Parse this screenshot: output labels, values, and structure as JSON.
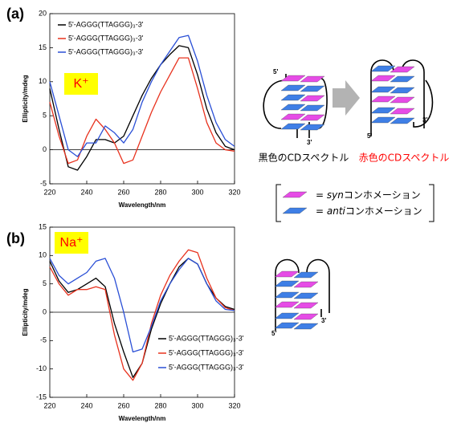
{
  "panel_labels": [
    "(a)",
    "(b)"
  ],
  "chart_data": [
    {
      "type": "line",
      "annotation": "K⁺",
      "x_label": "Wavelength/nm",
      "y_label": "Ellipticity/mdeg",
      "x": [
        220,
        225,
        230,
        235,
        240,
        245,
        250,
        255,
        260,
        265,
        270,
        275,
        280,
        285,
        290,
        295,
        300,
        305,
        310,
        315,
        320
      ],
      "xlim": [
        220,
        320
      ],
      "xticks": [
        220,
        240,
        260,
        280,
        300,
        320
      ],
      "ylim": [
        -5,
        20
      ],
      "yticks": [
        -5,
        0,
        5,
        10,
        15,
        20
      ],
      "zero_line": true,
      "legend": "upper left",
      "series": [
        {
          "name": "5'-AGGG(TTAGGG)₃-3'",
          "color": "#000000",
          "values": [
            9,
            3,
            -2.5,
            -3,
            -1,
            1.5,
            1.5,
            1,
            2,
            5,
            8,
            10.5,
            12.5,
            14,
            15.3,
            15,
            11,
            6,
            2.5,
            0.5,
            0
          ]
        },
        {
          "name": "5'-AGGG(TTAGGG)₃-3'",
          "color": "#e8321e",
          "values": [
            7,
            2,
            -2,
            -1.5,
            2,
            4.5,
            3,
            1,
            -2,
            -1.5,
            2,
            5.5,
            8.5,
            11,
            13.5,
            13.5,
            9,
            4,
            1,
            0,
            -0.2
          ]
        },
        {
          "name": "5'-AGGG(TTAGGG)₃-3'",
          "color": "#2a4fd6",
          "values": [
            10,
            5,
            0,
            -1,
            1,
            1,
            3.5,
            2.5,
            1,
            3,
            7,
            10,
            12.5,
            14.5,
            16.5,
            16.8,
            13,
            8,
            4,
            1.5,
            0.5
          ]
        }
      ]
    },
    {
      "type": "line",
      "annotation": "Na⁺",
      "x_label": "Wavelength/nm",
      "y_label": "Ellipticity/mdeg",
      "x": [
        220,
        225,
        230,
        235,
        240,
        245,
        250,
        255,
        260,
        265,
        270,
        275,
        280,
        285,
        290,
        295,
        300,
        305,
        310,
        315,
        320
      ],
      "xlim": [
        220,
        320
      ],
      "xticks": [
        220,
        240,
        260,
        280,
        300,
        320
      ],
      "ylim": [
        -15,
        15
      ],
      "yticks": [
        -15,
        -10,
        -5,
        0,
        5,
        10,
        15
      ],
      "zero_line": true,
      "legend": "lower right",
      "series": [
        {
          "name": "5'-AGGG(TTAGGG)₃-3'",
          "color": "#000000",
          "values": [
            9,
            5.5,
            3.5,
            4,
            5,
            6,
            4.5,
            -2,
            -7,
            -11.5,
            -9,
            -3,
            1.5,
            5,
            8,
            9.5,
            8.5,
            5,
            2.5,
            1,
            0.5
          ]
        },
        {
          "name": "5'-AGGG(TTAGGG)₃-3'",
          "color": "#e8321e",
          "values": [
            8,
            5,
            3,
            4,
            4,
            4.5,
            4,
            -4,
            -10,
            -12,
            -9,
            -2,
            3,
            6.5,
            9,
            11,
            10.5,
            6,
            2.5,
            0.8,
            0.3
          ]
        },
        {
          "name": "5'-AGGG(TTAGGG)₃-3'",
          "color": "#2a4fd6",
          "values": [
            9.5,
            6.5,
            5,
            6,
            7,
            9,
            9.5,
            6,
            0,
            -7,
            -6.5,
            -2.5,
            2,
            5,
            7.5,
            9.5,
            8.5,
            5,
            2,
            0.5,
            0.3
          ]
        }
      ]
    }
  ],
  "diagrams": {
    "strand_labels": [
      "5'",
      "3'",
      "5'",
      "3'",
      "5'",
      "3'"
    ],
    "captions": [
      "黒色のCDスペクトル",
      "赤色のCDスペクトル"
    ],
    "legend": [
      {
        "symbol": "=",
        "term": "syn",
        "text": "コンホメーション",
        "color": "#e64ce6"
      },
      {
        "symbol": "=",
        "term": "anti",
        "text": "コンホメーション",
        "color": "#3f7fe6"
      }
    ]
  }
}
